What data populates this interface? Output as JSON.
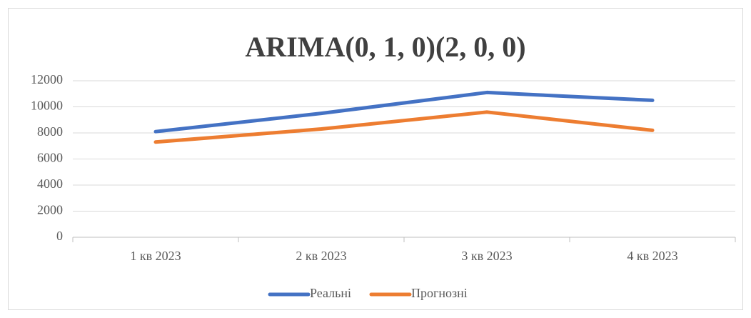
{
  "chart_data": {
    "type": "line",
    "title": "ARIMA(0, 1, 0)(2, 0, 0)",
    "categories": [
      "1 кв 2023",
      "2 кв 2023",
      "3 кв 2023",
      "4 кв 2023"
    ],
    "series": [
      {
        "name": "Реальні",
        "color": "#4472c4",
        "values": [
          8100,
          9500,
          11100,
          10500
        ]
      },
      {
        "name": "Прогнозні",
        "color": "#ed7d31",
        "values": [
          7300,
          8300,
          9600,
          8200
        ]
      }
    ],
    "ylim": [
      0,
      12000
    ],
    "yticks": [
      0,
      2000,
      4000,
      6000,
      8000,
      10000,
      12000
    ],
    "grid": true,
    "legend": "bottom"
  }
}
